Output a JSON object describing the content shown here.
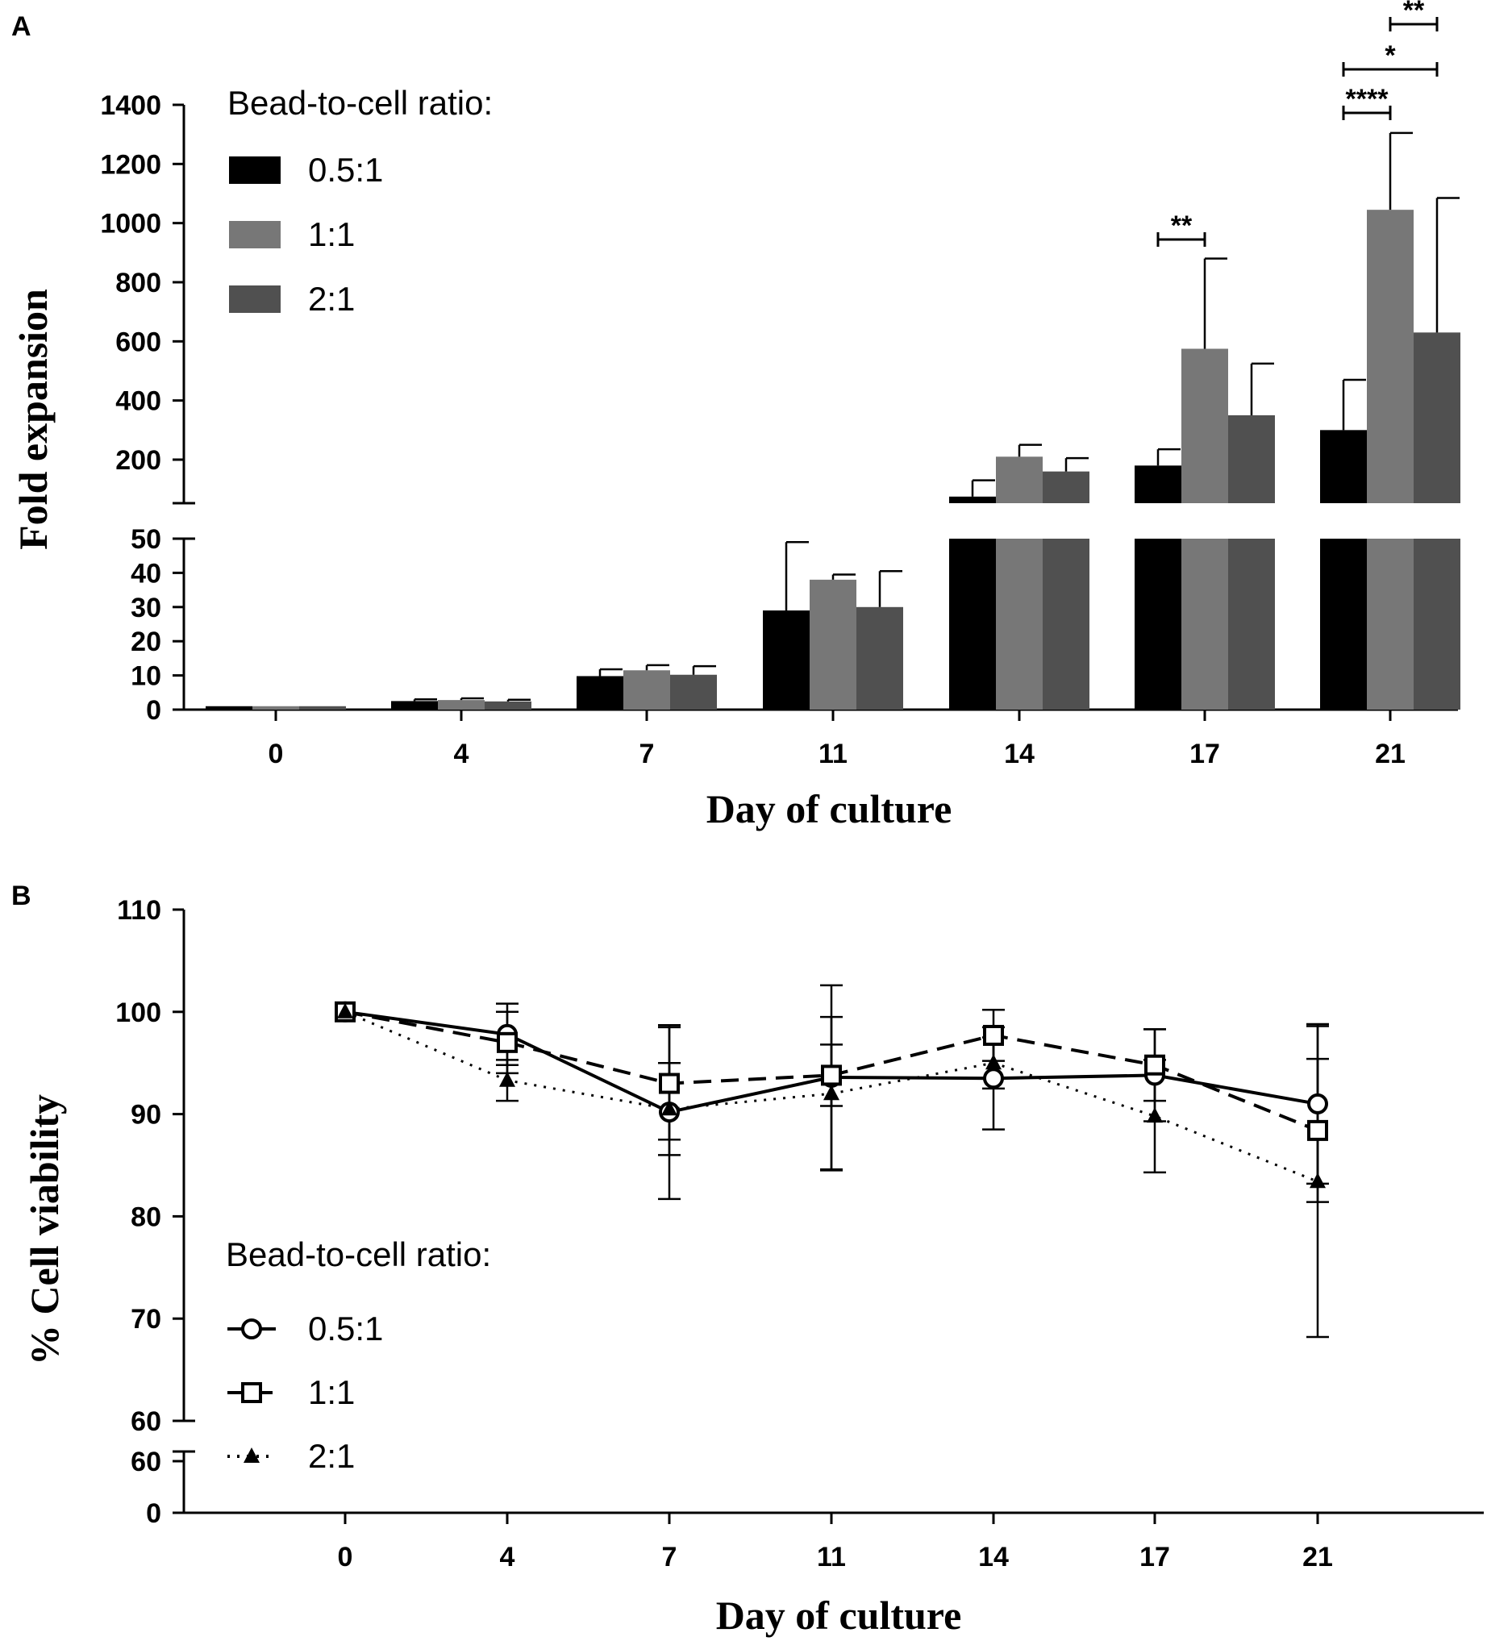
{
  "chart_data": [
    {
      "panel": "A",
      "type": "bar",
      "ylabel": "Fold expansion",
      "xlabel": "Day of culture",
      "categories": [
        "0",
        "4",
        "7",
        "11",
        "14",
        "17",
        "21"
      ],
      "legend_title": "Bead-to-cell ratio:",
      "legend_position": "top-left",
      "ylim_lower": [
        0,
        50
      ],
      "ylim_upper": [
        50,
        1400
      ],
      "yticks_lower": [
        "0",
        "10",
        "20",
        "30",
        "40",
        "50"
      ],
      "yticks_upper": [
        "200",
        "400",
        "600",
        "800",
        "1000",
        "1200",
        "1400"
      ],
      "series": [
        {
          "name": "0.5:1",
          "color": "#000000",
          "values": [
            1,
            2.5,
            9.8,
            29,
            75,
            180,
            300
          ],
          "errors": [
            0,
            0.5,
            2,
            20,
            55,
            55,
            170
          ]
        },
        {
          "name": "1:1",
          "color": "#777777",
          "values": [
            1,
            2.8,
            11.5,
            38,
            210,
            575,
            1045
          ],
          "errors": [
            0,
            0.5,
            1.5,
            1.5,
            40,
            305,
            260
          ]
        },
        {
          "name": "2:1",
          "color": "#505050",
          "values": [
            1,
            2.4,
            10.2,
            30,
            160,
            350,
            630
          ],
          "errors": [
            0,
            0.5,
            2.5,
            10.5,
            45,
            175,
            455
          ]
        }
      ],
      "significance": [
        {
          "day": "17",
          "from": "0.5:1",
          "to": "1:1",
          "label": "**"
        },
        {
          "day": "21",
          "from": "0.5:1",
          "to": "1:1",
          "label": "****"
        },
        {
          "day": "21",
          "from": "0.5:1",
          "to": "2:1",
          "label": "*"
        },
        {
          "day": "21",
          "from": "1:1",
          "to": "2:1",
          "label": "**"
        }
      ]
    },
    {
      "panel": "B",
      "type": "line",
      "ylabel": "% Cell viability",
      "xlabel": "Day of culture",
      "categories": [
        "0",
        "4",
        "7",
        "11",
        "14",
        "17",
        "21"
      ],
      "legend_title": "Bead-to-cell ratio:",
      "legend_position": "bottom-left",
      "ylim_upper": [
        60,
        110
      ],
      "ylim_lower": [
        0,
        60
      ],
      "yticks_upper": [
        "60",
        "70",
        "80",
        "90",
        "100",
        "110"
      ],
      "yticks_lower": [
        "0",
        "60"
      ],
      "series": [
        {
          "name": "0.5:1",
          "marker": "circle",
          "line": "solid",
          "values": [
            100,
            97.8,
            90.2,
            93.6,
            93.5,
            93.8,
            91
          ],
          "errors": [
            0,
            3,
            8.5,
            9,
            5,
            4.5,
            7.8
          ]
        },
        {
          "name": "1:1",
          "marker": "square",
          "line": "dashed",
          "values": [
            100,
            97,
            93,
            93.8,
            97.7,
            94.8,
            88.4
          ],
          "errors": [
            0,
            3,
            5.5,
            3,
            2.5,
            3.5,
            7
          ]
        },
        {
          "name": "2:1",
          "marker": "triangle",
          "line": "dotted",
          "values": [
            100,
            93.3,
            90.5,
            92,
            95,
            89.8,
            83.4
          ],
          "errors": [
            0,
            2,
            4.5,
            7.5,
            2.5,
            5.5,
            15.2
          ]
        }
      ]
    }
  ]
}
